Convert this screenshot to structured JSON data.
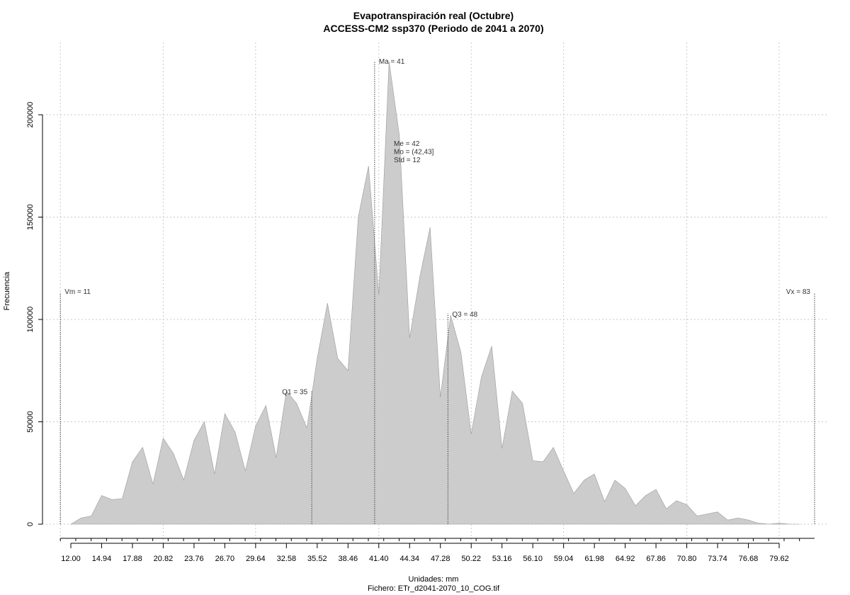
{
  "chart_data": {
    "type": "area",
    "title": "Evapotranspiración real (Octubre)",
    "subtitle": "ACCESS-CM2 ssp370 (Periodo de 2041 a 2070)",
    "xlabel": "Unidades: mm",
    "ylabel": "Frecuencia",
    "caption": "Fichero: ETr_d2041-2070_10_COG.tif",
    "xlim": [
      11,
      83
    ],
    "ylim": [
      0,
      225000
    ],
    "grid": true,
    "x_ticks": [
      "12.00",
      "14.94",
      "17.88",
      "20.82",
      "23.76",
      "26.70",
      "29.64",
      "32.58",
      "35.52",
      "38.46",
      "41.40",
      "44.34",
      "47.28",
      "50.22",
      "53.16",
      "56.10",
      "59.04",
      "61.98",
      "64.92",
      "67.86",
      "70.80",
      "73.74",
      "76.68",
      "79.62"
    ],
    "y_ticks": [
      "0",
      "50000",
      "100000",
      "150000",
      "200000"
    ],
    "fill_color": "#cccccc",
    "series": [
      {
        "x": [
          12,
          12.98,
          13.96,
          14.94,
          15.92,
          16.9,
          17.88,
          18.86,
          19.84,
          20.82,
          21.8,
          22.78,
          23.76,
          24.74,
          25.72,
          26.7,
          27.68,
          28.66,
          29.64,
          30.62,
          31.6,
          32.58,
          33.56,
          34.54,
          35.52,
          36.5,
          37.48,
          38.46,
          39.44,
          40.42,
          41.4,
          42.38,
          43.36,
          44.34,
          45.32,
          46.3,
          47.28,
          48.26,
          49.24,
          50.22,
          51.2,
          52.18,
          53.16,
          54.14,
          55.12,
          56.1,
          57.08,
          58.06,
          59.04,
          60.02,
          61,
          61.98,
          62.96,
          63.94,
          64.92,
          65.9,
          66.88,
          67.86,
          68.84,
          69.82,
          70.8,
          71.78,
          72.76,
          73.74,
          74.72,
          75.7,
          76.68,
          77.66,
          78.64,
          79.62,
          80.6,
          81.58
        ],
        "y": [
          0,
          3000,
          4000,
          14000,
          12000,
          12500,
          30500,
          37500,
          19500,
          42000,
          34500,
          21500,
          41000,
          50000,
          24500,
          54000,
          45000,
          26000,
          48000,
          58000,
          32500,
          65000,
          59000,
          47000,
          81000,
          108000,
          81000,
          75000,
          150000,
          175000,
          112000,
          226000,
          190000,
          91000,
          121000,
          145000,
          62000,
          102000,
          84000,
          44000,
          72000,
          87000,
          37000,
          65000,
          59000,
          31000,
          30500,
          37500,
          26000,
          15000,
          21500,
          24500,
          11000,
          21500,
          17500,
          9000,
          14000,
          17000,
          7500,
          11500,
          9500,
          4000,
          5000,
          6000,
          2000,
          3000,
          2000,
          500,
          0,
          500,
          0,
          0
        ]
      }
    ],
    "annotations": [
      {
        "id": "vm",
        "label": "Vm = 11",
        "x": 11,
        "line_top": 113000,
        "text_y": 113500,
        "anchor": "start"
      },
      {
        "id": "q1",
        "label": "Q1 = 35",
        "x": 35,
        "line_top": 65000,
        "text_y": 64500,
        "anchor": "end"
      },
      {
        "id": "ma",
        "label": "Ma = 41",
        "x": 41,
        "line_top": 226000,
        "text_y": 226000,
        "anchor": "start"
      },
      {
        "id": "q3",
        "label": "Q3 = 48",
        "x": 48,
        "line_top": 103000,
        "text_y": 102500,
        "anchor": "start"
      },
      {
        "id": "vx",
        "label": "Vx = 83",
        "x": 83,
        "line_top": 113000,
        "text_y": 113500,
        "anchor": "end"
      }
    ],
    "stats_text": [
      "Me = 42",
      "Mo = (42,43]",
      "Std = 12"
    ]
  }
}
